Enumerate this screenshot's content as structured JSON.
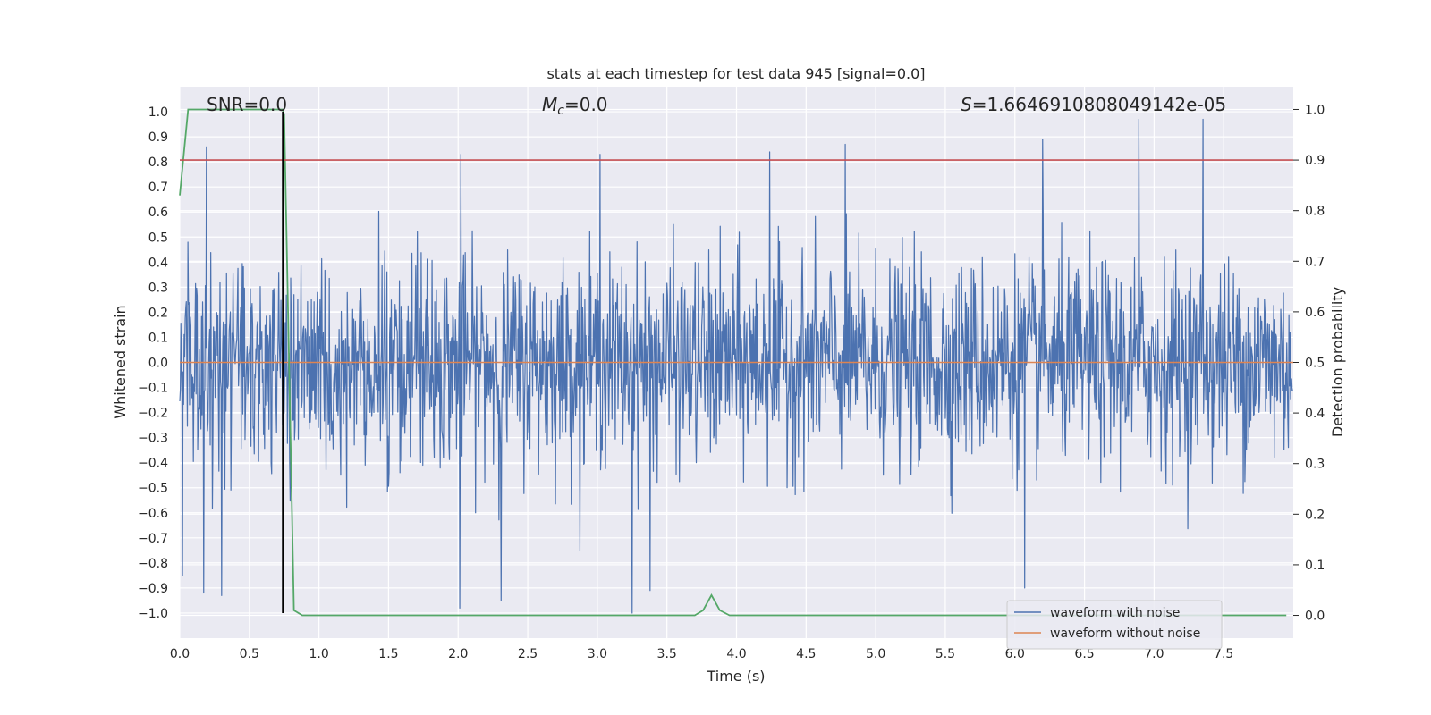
{
  "chart_data": {
    "type": "line",
    "title": "stats at each timestep for test data 945 [signal=0.0]",
    "xlabel": "Time (s)",
    "ylabel": "Whitened strain",
    "ylabel_right": "Detection probability",
    "xlim": [
      0.0,
      8.0
    ],
    "ylim": [
      -1.1,
      1.1
    ],
    "ylim_right": [
      -0.045,
      1.045
    ],
    "x_ticks": [
      "0.0",
      "0.5",
      "1.0",
      "1.5",
      "2.0",
      "2.5",
      "3.0",
      "3.5",
      "4.0",
      "4.5",
      "5.0",
      "5.5",
      "6.0",
      "6.5",
      "7.0",
      "7.5"
    ],
    "y_ticks": [
      "1.0",
      "0.9",
      "0.8",
      "0.7",
      "0.6",
      "0.5",
      "0.4",
      "0.3",
      "0.2",
      "0.1",
      "0.0",
      "−0.1",
      "−0.2",
      "−0.3",
      "−0.4",
      "−0.5",
      "−0.6",
      "−0.7",
      "−0.8",
      "−0.9",
      "−1.0"
    ],
    "y_ticks_right": [
      "1.0",
      "0.9",
      "0.8",
      "0.7",
      "0.6",
      "0.5",
      "0.4",
      "0.3",
      "0.2",
      "0.1",
      "0.0"
    ],
    "grid": true,
    "annotations": {
      "snr": "SNR=0.0",
      "mc_symbol": "M",
      "mc_subscript": "c",
      "mc_value": "=0.0",
      "s_symbol": "S",
      "s_value": "=1.6646910808049142e-05"
    },
    "series": [
      {
        "name": "waveform with noise",
        "color": "#4c72b0",
        "axis": "left",
        "kind": "noise",
        "sample_rate": 256,
        "amplitude_typical": 0.4,
        "peaks": [
          {
            "x": 0.19,
            "y": 0.86
          },
          {
            "x": 2.02,
            "y": 0.83
          },
          {
            "x": 3.02,
            "y": 0.83
          },
          {
            "x": 4.24,
            "y": 0.84
          },
          {
            "x": 4.78,
            "y": 0.87
          },
          {
            "x": 6.2,
            "y": 0.89
          },
          {
            "x": 6.89,
            "y": 0.97
          },
          {
            "x": 7.35,
            "y": 0.97
          }
        ],
        "troughs": [
          {
            "x": 0.02,
            "y": -0.85
          },
          {
            "x": 0.17,
            "y": -0.92
          },
          {
            "x": 0.3,
            "y": -0.93
          },
          {
            "x": 2.01,
            "y": -0.98
          },
          {
            "x": 2.31,
            "y": -0.95
          },
          {
            "x": 3.25,
            "y": -1.0
          },
          {
            "x": 3.38,
            "y": -0.91
          },
          {
            "x": 6.07,
            "y": -0.9
          }
        ]
      },
      {
        "name": "waveform without noise",
        "color": "#dd8452",
        "axis": "left",
        "kind": "line",
        "x": [
          0.0,
          8.0
        ],
        "y": [
          0.0,
          0.0
        ]
      },
      {
        "name": "detection probability",
        "color": "#55a868",
        "axis": "right",
        "kind": "line",
        "x": [
          0.0,
          0.06,
          0.1,
          0.2,
          0.5,
          0.74,
          0.75,
          0.82,
          0.88,
          1.5,
          3.5,
          3.7,
          3.76,
          3.82,
          3.88,
          3.95,
          4.5,
          7.95
        ],
        "y": [
          0.83,
          1.0,
          1.0,
          1.0,
          1.0,
          1.0,
          0.99,
          0.01,
          0.0,
          0.0,
          0.0,
          0.0,
          0.01,
          0.04,
          0.01,
          0.0,
          0.0,
          0.0
        ]
      }
    ],
    "threshold": {
      "axis": "right",
      "y": 0.9,
      "color": "#c44e52"
    },
    "marker_line": {
      "x": 0.74,
      "y_from": -1.0,
      "y_to": 1.0,
      "color": "#000000"
    },
    "legend": {
      "position": "lower-right",
      "entries": [
        {
          "label": "waveform with noise",
          "color": "#4c72b0"
        },
        {
          "label": "waveform without noise",
          "color": "#dd8452"
        }
      ]
    }
  }
}
